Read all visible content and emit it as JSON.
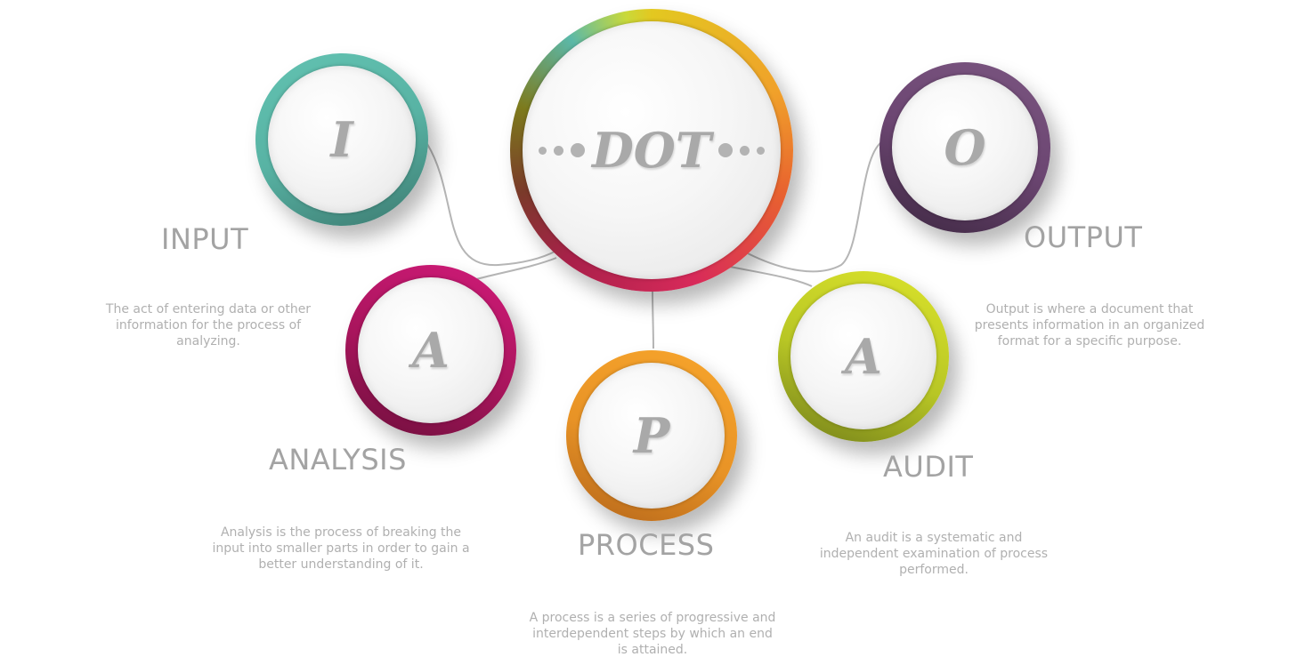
{
  "hub": {
    "word": "DOT"
  },
  "nodes": {
    "input": {
      "letter": "I",
      "heading": "INPUT",
      "description": "The act of entering data or other information for the process of analyzing.",
      "color": "#5bb8a8"
    },
    "analysis": {
      "letter": "A",
      "heading": "ANALYSIS",
      "description": "Analysis is the process of breaking the input into smaller parts in order to gain a better understanding of it.",
      "color": "#c8186f"
    },
    "process": {
      "letter": "P",
      "heading": "PROCESS",
      "description": "A process is a series of progressive and interdependent steps by which an end is attained.",
      "color": "#f2a12a"
    },
    "audit": {
      "letter": "A",
      "heading": "AUDIT",
      "description": "An audit is a systematic and independent examination of process performed.",
      "color": "#cfdc2a"
    },
    "output": {
      "letter": "O",
      "heading": "OUTPUT",
      "description": "Output is where a document that presents information in an organized format for a specific purpose.",
      "color": "#6e4a72"
    }
  }
}
